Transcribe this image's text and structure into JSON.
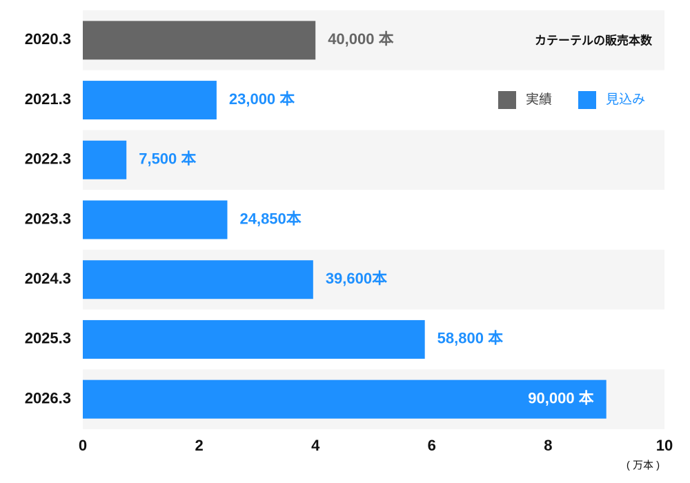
{
  "chart_data": {
    "type": "bar",
    "orientation": "horizontal",
    "title": "カテーテルの販売本数",
    "x_label": "( 万本 )",
    "categories": [
      "2020.3",
      "2021.3",
      "2022.3",
      "2023.3",
      "2024.3",
      "2025.3",
      "2026.3"
    ],
    "series": [
      {
        "name": "実績",
        "color": "#666666",
        "values": [
          4,
          null,
          null,
          null,
          null,
          null,
          null
        ],
        "value_labels": [
          "40,000 本",
          null,
          null,
          null,
          null,
          null,
          null
        ]
      },
      {
        "name": "見込み",
        "color": "#1e90ff",
        "values": [
          null,
          2.3,
          0.75,
          2.485,
          3.96,
          5.88,
          9
        ],
        "value_labels": [
          null,
          "23,000 本",
          "7,500 本",
          "24,850本",
          "39,600本",
          "58,800 本",
          "90,000 本"
        ]
      }
    ],
    "xlim": [
      0,
      10
    ],
    "xticks": [
      0,
      2,
      4,
      6,
      8,
      10
    ],
    "legend": "top-right"
  }
}
